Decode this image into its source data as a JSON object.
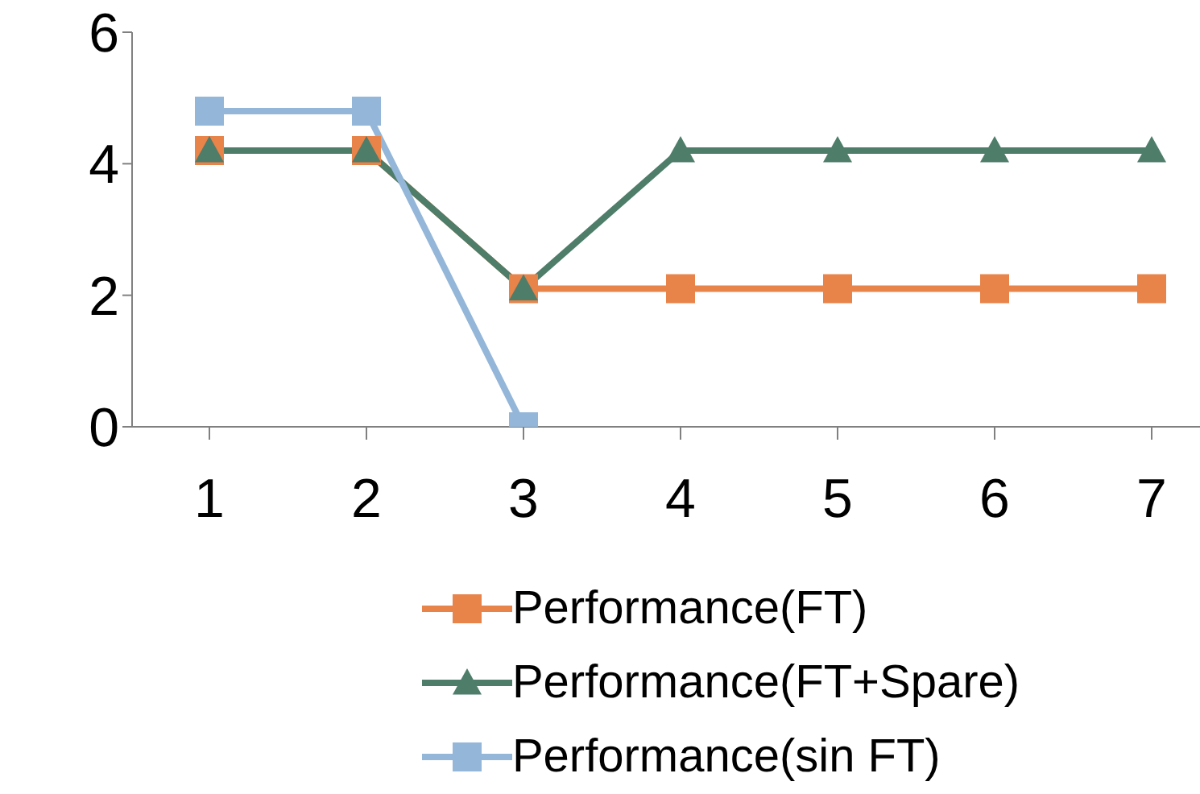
{
  "chart_data": {
    "type": "line",
    "categories": [
      "1",
      "2",
      "3",
      "4",
      "5",
      "6",
      "7"
    ],
    "series": [
      {
        "name": "Performance(FT)",
        "color": "#e8834a",
        "marker": "square",
        "values": [
          4.2,
          4.2,
          2.1,
          2.1,
          2.1,
          2.1,
          2.1
        ]
      },
      {
        "name": "Performance(FT+Spare)",
        "color": "#4e7d6a",
        "marker": "triangle",
        "values": [
          4.2,
          4.2,
          2.1,
          4.2,
          4.2,
          4.2,
          4.2
        ]
      },
      {
        "name": "Performance(sin FT)",
        "color": "#94b6d8",
        "marker": "square",
        "values": [
          4.8,
          4.8,
          0,
          null,
          null,
          null,
          null
        ]
      }
    ],
    "ylim": [
      0,
      6
    ],
    "yticks": [
      0,
      2,
      4,
      6
    ],
    "grid": false,
    "legend": "bottom"
  }
}
